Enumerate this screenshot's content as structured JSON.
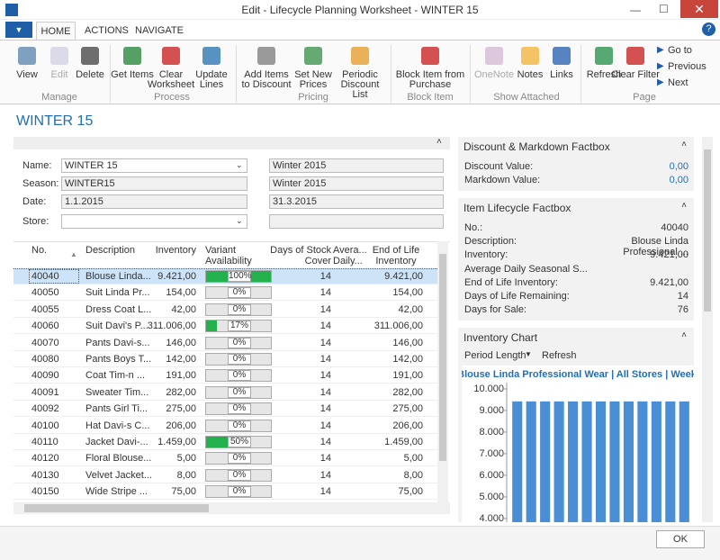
{
  "window": {
    "title": "Edit - Lifecycle Planning Worksheet - WINTER 15"
  },
  "ribbon": {
    "tabs": [
      "HOME",
      "ACTIONS",
      "NAVIGATE"
    ],
    "groups": [
      {
        "label": "Manage",
        "buttons": [
          "View",
          "Edit",
          "Delete"
        ]
      },
      {
        "label": "Process",
        "buttons": [
          "Get Items",
          "Clear Worksheet",
          "Update Lines"
        ]
      },
      {
        "label": "Pricing",
        "buttons": [
          "Add Items to Discount",
          "Set New Prices",
          "Periodic Discount List"
        ]
      },
      {
        "label": "Block Item",
        "buttons": [
          "Block Item from Purchase"
        ]
      },
      {
        "label": "Show Attached",
        "buttons": [
          "OneNote",
          "Notes",
          "Links"
        ]
      },
      {
        "label": "Page",
        "buttons": [
          "Refresh",
          "Clear Filter"
        ],
        "nav": [
          "Go to",
          "Previous",
          "Next"
        ]
      }
    ]
  },
  "page_title": "WINTER 15",
  "header_fields": [
    {
      "label": "Name:",
      "value": "WINTER 15",
      "value2": "Winter 2015"
    },
    {
      "label": "Season:",
      "value": "WINTER15",
      "value2": "Winter 2015"
    },
    {
      "label": "Date:",
      "value": "1.1.2015",
      "value2": "31.3.2015"
    },
    {
      "label": "Store:"
    }
  ],
  "table": {
    "columns": [
      "No.",
      "Description",
      "Inventory",
      "Variant Availability",
      "Days of Stock Cover",
      "Avera... Daily...",
      "End of Life Inventory"
    ],
    "rows": [
      {
        "no": "40040",
        "description": "Blouse Linda...",
        "inventory": "9.421,00",
        "availability": 100,
        "availability_label": "100%",
        "days": "14",
        "end_of_life": "9.421,00"
      },
      {
        "no": "40050",
        "description": "Suit Linda Pr...",
        "inventory": "154,00",
        "availability": 0,
        "availability_label": "0%",
        "days": "14",
        "end_of_life": "154,00"
      },
      {
        "no": "40055",
        "description": "Dress Coat L...",
        "inventory": "42,00",
        "availability": 0,
        "availability_label": "0%",
        "days": "14",
        "end_of_life": "42,00"
      },
      {
        "no": "40060",
        "description": "Suit Davi's P...",
        "inventory": "311.006,00",
        "availability": 17,
        "availability_label": "17%",
        "days": "14",
        "end_of_life": "311.006,00"
      },
      {
        "no": "40070",
        "description": "Pants Davi-s...",
        "inventory": "146,00",
        "availability": 0,
        "availability_label": "0%",
        "days": "14",
        "end_of_life": "146,00"
      },
      {
        "no": "40080",
        "description": "Pants Boys T...",
        "inventory": "142,00",
        "availability": 0,
        "availability_label": "0%",
        "days": "14",
        "end_of_life": "142,00"
      },
      {
        "no": "40090",
        "description": "Coat Tim-n ...",
        "inventory": "191,00",
        "availability": 0,
        "availability_label": "0%",
        "days": "14",
        "end_of_life": "191,00"
      },
      {
        "no": "40091",
        "description": "Sweater Tim...",
        "inventory": "282,00",
        "availability": 0,
        "availability_label": "0%",
        "days": "14",
        "end_of_life": "282,00"
      },
      {
        "no": "40092",
        "description": "Pants Girl Ti...",
        "inventory": "275,00",
        "availability": 0,
        "availability_label": "0%",
        "days": "14",
        "end_of_life": "275,00"
      },
      {
        "no": "40100",
        "description": "Hat Davi-s C...",
        "inventory": "206,00",
        "availability": 0,
        "availability_label": "0%",
        "days": "14",
        "end_of_life": "206,00"
      },
      {
        "no": "40110",
        "description": "Jacket Davi-...",
        "inventory": "1.459,00",
        "availability": 50,
        "availability_label": "50%",
        "days": "14",
        "end_of_life": "1.459,00"
      },
      {
        "no": "40120",
        "description": "Floral Blouse...",
        "inventory": "5,00",
        "availability": 0,
        "availability_label": "0%",
        "days": "14",
        "end_of_life": "5,00"
      },
      {
        "no": "40130",
        "description": "Velvet Jacket...",
        "inventory": "8,00",
        "availability": 0,
        "availability_label": "0%",
        "days": "14",
        "end_of_life": "8,00"
      },
      {
        "no": "40150",
        "description": "Wide Stripe ...",
        "inventory": "75,00",
        "availability": 0,
        "availability_label": "0%",
        "days": "14",
        "end_of_life": "75,00"
      }
    ]
  },
  "discount_factbox": {
    "title": "Discount & Markdown Factbox",
    "fields": [
      {
        "label": "Discount Value:",
        "value": "0,00"
      },
      {
        "label": "Markdown Value:",
        "value": "0,00"
      }
    ]
  },
  "lifecycle_factbox": {
    "title": "Item Lifecycle Factbox",
    "fields": [
      {
        "label": "No.:",
        "value": "40040"
      },
      {
        "label": "Description:",
        "value": "Blouse Linda Professional ..."
      },
      {
        "label": "Inventory:",
        "value": "9.421,00"
      },
      {
        "label": "Average Daily Seasonal S..."
      },
      {
        "label": "End of Life Inventory:",
        "value": "9.421,00"
      },
      {
        "label": "Days of Life Remaining:",
        "value": "14"
      },
      {
        "label": "Days for Sale:",
        "value": "76"
      }
    ]
  },
  "inventory_chart": {
    "title": "Inventory Chart",
    "actions": [
      "Period Length",
      "Refresh"
    ]
  },
  "chart_data": {
    "type": "bar",
    "title": "Blouse Linda Professional Wear | All Stores | Week",
    "categories": [
      null,
      null,
      null,
      null,
      null,
      null,
      null,
      null,
      null,
      null,
      null,
      null,
      null
    ],
    "values": [
      9421,
      9421,
      9421,
      9421,
      9421,
      9421,
      9421,
      9421,
      9421,
      9421,
      9421,
      9421,
      9421
    ],
    "color": "#4a8fd6",
    "ylim": [
      3830,
      10290
    ],
    "yticks": [
      {
        "value": 10000,
        "label": "10.000"
      },
      {
        "value": 9000,
        "label": "9.000"
      },
      {
        "value": 8000,
        "label": "8.000"
      },
      {
        "value": 7000,
        "label": "7.000"
      },
      {
        "value": 6000,
        "label": "6.000"
      },
      {
        "value": 5000,
        "label": "5.000"
      },
      {
        "value": 4000,
        "label": "4.000"
      }
    ],
    "grid": false
  },
  "footer": {
    "ok": "OK"
  }
}
